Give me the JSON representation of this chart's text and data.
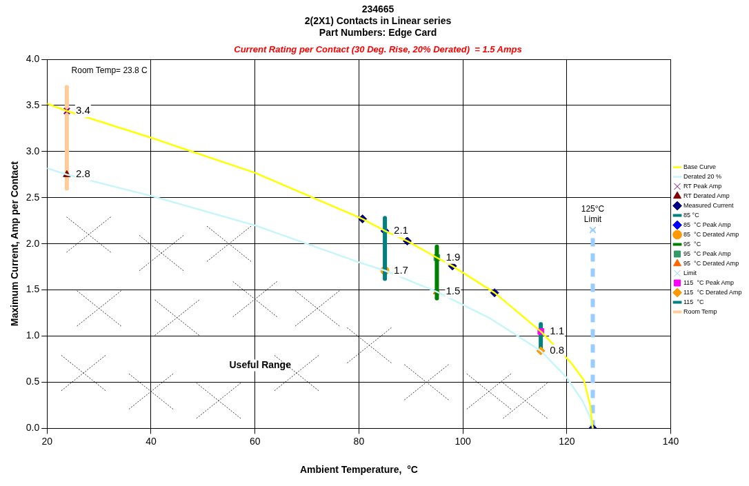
{
  "chart_data": {
    "type": "line",
    "title": "234665",
    "subtitle": "2(2X1) Contacts in Linear series",
    "xlabel": "Ambient Temperature,  °C",
    "ylabel": "Maximum Current, Amp per Contact",
    "annotations": [
      "Part Numbers: Edge Card",
      "Current Rating per Contact (30 Deg. Rise, 20% Derated)  = 1.5 Amps",
      "Room Temp= 23.8 C",
      "125°C Limit",
      "Useful Range"
    ],
    "xlim": [
      20,
      140
    ],
    "xticks": [
      20,
      40,
      60,
      80,
      100,
      120,
      140
    ],
    "ylim": [
      0,
      4
    ],
    "yticks": [
      {
        "value": 0,
        "label": "0.0"
      },
      {
        "value": 0.5,
        "label": "0.5"
      },
      {
        "value": 1,
        "label": "1.0"
      },
      {
        "value": 1.5,
        "label": "1.5"
      },
      {
        "value": 2,
        "label": "2.0"
      },
      {
        "value": 2.5,
        "label": "2.5"
      },
      {
        "value": 3,
        "label": "3.0"
      },
      {
        "value": 3.5,
        "label": "3.5"
      },
      {
        "value": 4,
        "label": "4.0"
      }
    ],
    "grid": true,
    "legend": "right",
    "marker": "none",
    "line_style": "solid",
    "series": [
      {
        "name": "Base Curve",
        "type": "line",
        "color": "#ffff00",
        "x": [
          20,
          23.8,
          40,
          60,
          80.7,
          85,
          89.3,
          95,
          98,
          106.1,
          115,
          120.7,
          123.3,
          124.5,
          125
        ],
        "values": [
          3.52,
          3.44,
          3.15,
          2.77,
          2.27,
          2.14,
          2.03,
          1.85,
          1.76,
          1.47,
          1.05,
          0.72,
          0.52,
          0.25,
          0
        ]
      },
      {
        "name": "Derated 20 %",
        "type": "line",
        "color": "#c6f6fa",
        "x": [
          20,
          23.8,
          40,
          60,
          80,
          85,
          95,
          105,
          115,
          120,
          123,
          124.5,
          125
        ],
        "values": [
          2.82,
          2.75,
          2.52,
          2.2,
          1.8,
          1.71,
          1.48,
          1.2,
          0.84,
          0.55,
          0.3,
          0.12,
          0
        ]
      },
      {
        "name": "RT Peak Amp",
        "type": "scatter",
        "color": "#800080",
        "marker": "cross",
        "x": [
          23.8
        ],
        "values": [
          3.44
        ],
        "value_labels": [
          "3.4"
        ]
      },
      {
        "name": "RT Derated Amp",
        "type": "scatter",
        "color": "#800000",
        "marker": "triangle",
        "x": [
          23.8
        ],
        "values": [
          2.75
        ],
        "value_labels": [
          "2.8"
        ]
      },
      {
        "name": "Measured Current",
        "type": "scatter",
        "color": "#000080",
        "marker": "diamond",
        "x": [
          80.7,
          89.3,
          98,
          106.1,
          125
        ],
        "values": [
          2.27,
          2.03,
          1.76,
          1.47,
          0
        ]
      },
      {
        "name": "85 °C",
        "type": "line",
        "color": "#008080",
        "x": [
          85,
          85
        ],
        "values": [
          1.62,
          2.28
        ]
      },
      {
        "name": "85  °C Peak Amp",
        "type": "scatter",
        "color": "#0000ff",
        "marker": "diamond",
        "x": [
          85
        ],
        "values": [
          2.14
        ],
        "value_labels": [
          "2.1"
        ]
      },
      {
        "name": "85  °C Derated Amp",
        "type": "scatter",
        "color": "#ff9900",
        "marker": "circle",
        "x": [
          85
        ],
        "values": [
          1.71
        ],
        "value_labels": [
          "1.7"
        ]
      },
      {
        "name": "95  °C",
        "type": "line",
        "color": "#008000",
        "x": [
          95,
          95
        ],
        "values": [
          1.41,
          1.97
        ]
      },
      {
        "name": "95  °C Peak Amp",
        "type": "scatter",
        "color": "#339966",
        "marker": "square",
        "x": [
          95
        ],
        "values": [
          1.85
        ],
        "value_labels": [
          "1.9"
        ]
      },
      {
        "name": "95  °C Derated Amp",
        "type": "scatter",
        "color": "#ff6600",
        "marker": "triangle",
        "x": [
          95
        ],
        "values": [
          1.48
        ],
        "value_labels": [
          "1.5"
        ]
      },
      {
        "name": "Limit",
        "type": "line",
        "color": "#99ccff",
        "line_style": "dashed",
        "marker": "cross",
        "x": [
          125,
          125
        ],
        "values": [
          0,
          2.15
        ]
      },
      {
        "name": "115  °C Peak Amp",
        "type": "scatter",
        "color": "#ff00ff",
        "marker": "square",
        "x": [
          115
        ],
        "values": [
          1.05
        ],
        "value_labels": [
          "1.1"
        ]
      },
      {
        "name": "115  °C Derated Amp",
        "type": "scatter",
        "color": "#ff9900",
        "marker": "diamond",
        "x": [
          115
        ],
        "values": [
          0.84
        ],
        "value_labels": [
          "0.8"
        ]
      },
      {
        "name": "115  °C",
        "type": "line",
        "color": "#008080",
        "x": [
          115,
          115
        ],
        "values": [
          0.85,
          1.13
        ]
      },
      {
        "name": "Room Temp",
        "type": "line",
        "color": "#ffcc99",
        "x": [
          23.8,
          23.8
        ],
        "values": [
          2.6,
          3.7
        ]
      }
    ]
  }
}
